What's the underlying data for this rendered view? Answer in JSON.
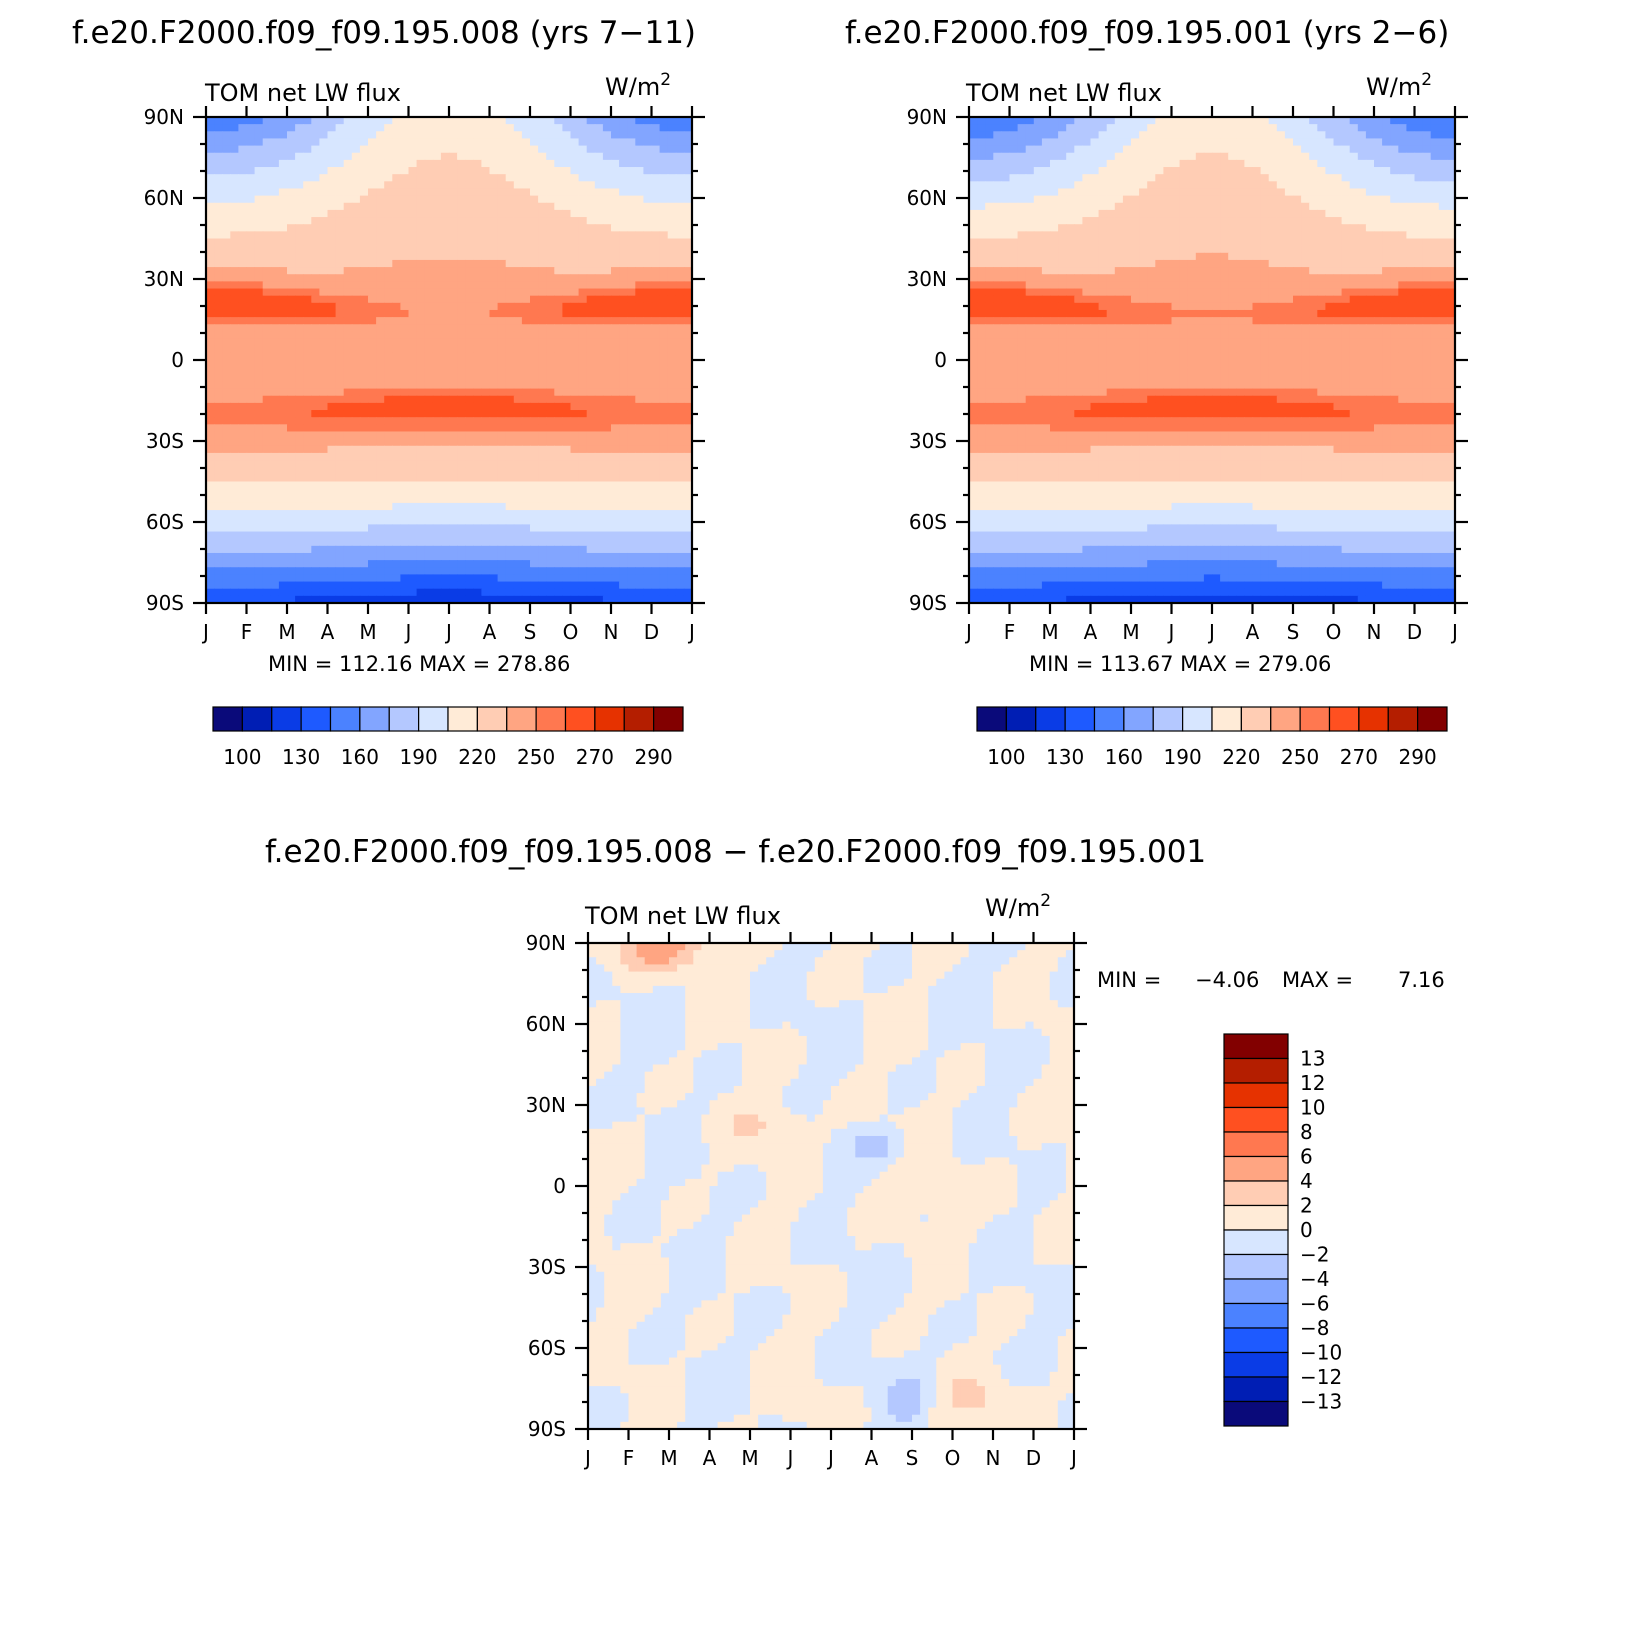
{
  "titles": {
    "left": "f.e20.F2000.f09_f09.195.008 (yrs 7−11)",
    "right": "f.e20.F2000.f09_f09.195.001 (yrs 2−6)",
    "diff": "f.e20.F2000.f09_f09.195.008 − f.e20.F2000.f09_f09.195.001"
  },
  "chart_data": [
    {
      "type": "heatmap",
      "title": "TOM net LW flux",
      "units": "W/m²",
      "x_ticks": [
        "J",
        "F",
        "M",
        "A",
        "M",
        "J",
        "J",
        "A",
        "S",
        "O",
        "N",
        "D",
        "J"
      ],
      "y_ticks": [
        "90N",
        "60N",
        "30N",
        "0",
        "30S",
        "60S",
        "90S"
      ],
      "stats": "MIN = 112.16 MAX = 278.86",
      "levels": [
        100,
        115,
        130,
        145,
        160,
        175,
        190,
        205,
        220,
        235,
        250,
        260,
        270,
        280,
        290
      ],
      "colorbar_labels": [
        "100",
        "130",
        "160",
        "190",
        "220",
        "250",
        "270",
        "290"
      ],
      "colors": [
        "#0a0a7a",
        "#001eb4",
        "#0a3ce6",
        "#1e5aff",
        "#4b82ff",
        "#82a5ff",
        "#b4c8ff",
        "#d7e6ff",
        "#ffebd7",
        "#ffcdb4",
        "#ffa582",
        "#ff7850",
        "#ff5020",
        "#e63200",
        "#b41e00",
        "#820000"
      ],
      "features": {
        "nh_polar_min": 150,
        "nh_polar_jul": 212,
        "nh_subtrop_max": 270,
        "equator_base": 238,
        "equator_jul": 222,
        "sh_subtrop_max": 268,
        "sh_polar_min": 130,
        "sh_polar_jul": 118
      }
    },
    {
      "type": "heatmap",
      "title": "TOM net LW flux",
      "units": "W/m²",
      "x_ticks": [
        "J",
        "F",
        "M",
        "A",
        "M",
        "J",
        "J",
        "A",
        "S",
        "O",
        "N",
        "D",
        "J"
      ],
      "y_ticks": [
        "90N",
        "60N",
        "30N",
        "0",
        "30S",
        "60S",
        "90S"
      ],
      "stats": "MIN = 113.67 MAX = 279.06",
      "levels": [
        100,
        115,
        130,
        145,
        160,
        175,
        190,
        205,
        220,
        235,
        250,
        260,
        270,
        280,
        290
      ],
      "colorbar_labels": [
        "100",
        "130",
        "160",
        "190",
        "220",
        "250",
        "270",
        "290"
      ],
      "colors": [
        "#0a0a7a",
        "#001eb4",
        "#0a3ce6",
        "#1e5aff",
        "#4b82ff",
        "#82a5ff",
        "#b4c8ff",
        "#d7e6ff",
        "#ffebd7",
        "#ffcdb4",
        "#ffa582",
        "#ff7850",
        "#ff5020",
        "#e63200",
        "#b41e00",
        "#820000"
      ],
      "features": {
        "nh_polar_min": 145,
        "nh_polar_jul": 213,
        "nh_subtrop_max": 270,
        "equator_base": 238,
        "equator_jul": 226,
        "sh_subtrop_max": 268,
        "sh_polar_min": 130,
        "sh_polar_jul": 119
      }
    },
    {
      "type": "heatmap",
      "title": "TOM net LW flux",
      "units": "W/m²",
      "x_ticks": [
        "J",
        "F",
        "M",
        "A",
        "M",
        "J",
        "J",
        "A",
        "S",
        "O",
        "N",
        "D",
        "J"
      ],
      "y_ticks": [
        "90N",
        "60N",
        "30N",
        "0",
        "30S",
        "60S",
        "90S"
      ],
      "stats_min_label": "MIN =",
      "stats_min": "−4.06",
      "stats_max_label": "MAX =",
      "stats_max": "7.16",
      "levels": [
        -13,
        -12,
        -10,
        -8,
        -6,
        -4,
        -2,
        0,
        2,
        4,
        6,
        8,
        10,
        12,
        13
      ],
      "colorbar_labels": [
        "13",
        "12",
        "10",
        "8",
        "6",
        "4",
        "2",
        "0",
        "−2",
        "−4",
        "−6",
        "−8",
        "−10",
        "−12",
        "−13"
      ],
      "colors": [
        "#0a0a7a",
        "#001eb4",
        "#0a3ce6",
        "#1e5aff",
        "#4b82ff",
        "#82a5ff",
        "#b4c8ff",
        "#d7e6ff",
        "#ffebd7",
        "#ffcdb4",
        "#ffa582",
        "#ff7850",
        "#ff5020",
        "#e63200",
        "#b41e00",
        "#820000"
      ]
    }
  ]
}
